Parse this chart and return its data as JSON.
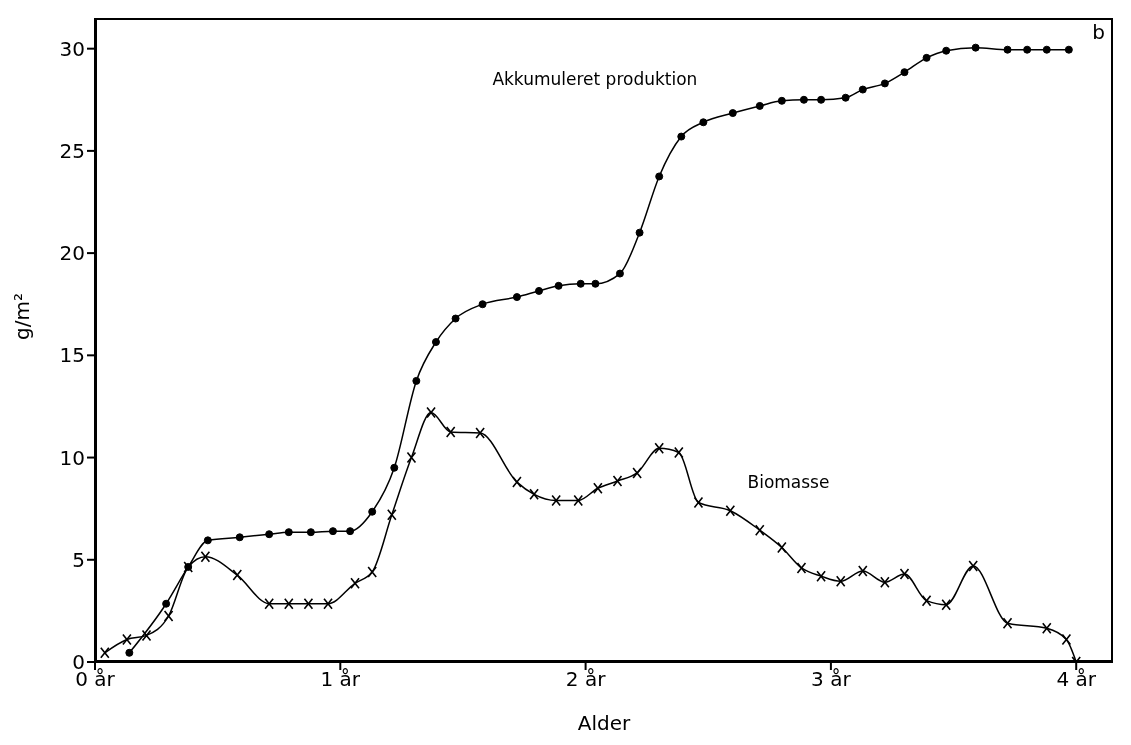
{
  "chart_data": {
    "type": "line",
    "xlabel": "Alder",
    "ylabel": "g/m²",
    "annotations": [
      "b"
    ],
    "xlim": [
      0,
      4.15
    ],
    "xticks": [
      {
        "value": 0,
        "label": "0 år"
      },
      {
        "value": 1,
        "label": "1 år"
      },
      {
        "value": 2,
        "label": "2 år"
      },
      {
        "value": 3,
        "label": "3 år"
      },
      {
        "value": 4,
        "label": "4 år"
      }
    ],
    "ylim": [
      0,
      31.5
    ],
    "yticks": [
      0,
      5,
      10,
      15,
      20,
      25,
      30
    ],
    "grid": false,
    "series": [
      {
        "name": "Akkumuleret produktion",
        "color": "#000000",
        "marker": "circle",
        "x": [
          0.14,
          0.29,
          0.38,
          0.46,
          0.59,
          0.71,
          0.79,
          0.88,
          0.97,
          1.04,
          1.13,
          1.22,
          1.31,
          1.39,
          1.47,
          1.58,
          1.72,
          1.81,
          1.89,
          1.98,
          2.04,
          2.14,
          2.22,
          2.3,
          2.39,
          2.48,
          2.6,
          2.71,
          2.8,
          2.89,
          2.96,
          3.06,
          3.13,
          3.22,
          3.3,
          3.39,
          3.47,
          3.59,
          3.72,
          3.8,
          3.88,
          3.97
        ],
        "values": [
          0.45,
          2.85,
          4.65,
          5.95,
          6.1,
          6.25,
          6.35,
          6.35,
          6.4,
          6.4,
          7.35,
          9.5,
          13.75,
          15.65,
          16.8,
          17.5,
          17.85,
          18.15,
          18.4,
          18.5,
          18.5,
          19.0,
          21.0,
          23.75,
          25.7,
          26.4,
          26.85,
          27.2,
          27.45,
          27.5,
          27.5,
          27.6,
          28.0,
          28.3,
          28.85,
          29.55,
          29.9,
          30.05,
          29.95,
          29.95,
          29.95,
          29.95
        ]
      },
      {
        "name": "Biomasse",
        "color": "#000000",
        "marker": "cross",
        "x": [
          0.04,
          0.13,
          0.21,
          0.3,
          0.38,
          0.45,
          0.58,
          0.71,
          0.79,
          0.87,
          0.95,
          1.06,
          1.13,
          1.21,
          1.29,
          1.37,
          1.45,
          1.57,
          1.72,
          1.79,
          1.88,
          1.97,
          2.05,
          2.13,
          2.21,
          2.3,
          2.38,
          2.46,
          2.59,
          2.71,
          2.8,
          2.88,
          2.96,
          3.04,
          3.13,
          3.22,
          3.3,
          3.39,
          3.47,
          3.58,
          3.72,
          3.88,
          3.96,
          4.0
        ],
        "values": [
          0.45,
          1.1,
          1.3,
          2.25,
          4.65,
          5.15,
          4.25,
          2.85,
          2.85,
          2.85,
          2.85,
          3.85,
          4.4,
          7.2,
          10.0,
          12.2,
          11.25,
          11.2,
          8.8,
          8.2,
          7.9,
          7.9,
          8.5,
          8.85,
          9.25,
          10.45,
          10.25,
          7.8,
          7.4,
          6.45,
          5.6,
          4.6,
          4.2,
          3.95,
          4.45,
          3.9,
          4.3,
          3.0,
          2.8,
          4.7,
          1.9,
          1.65,
          1.1,
          0
        ]
      }
    ]
  }
}
